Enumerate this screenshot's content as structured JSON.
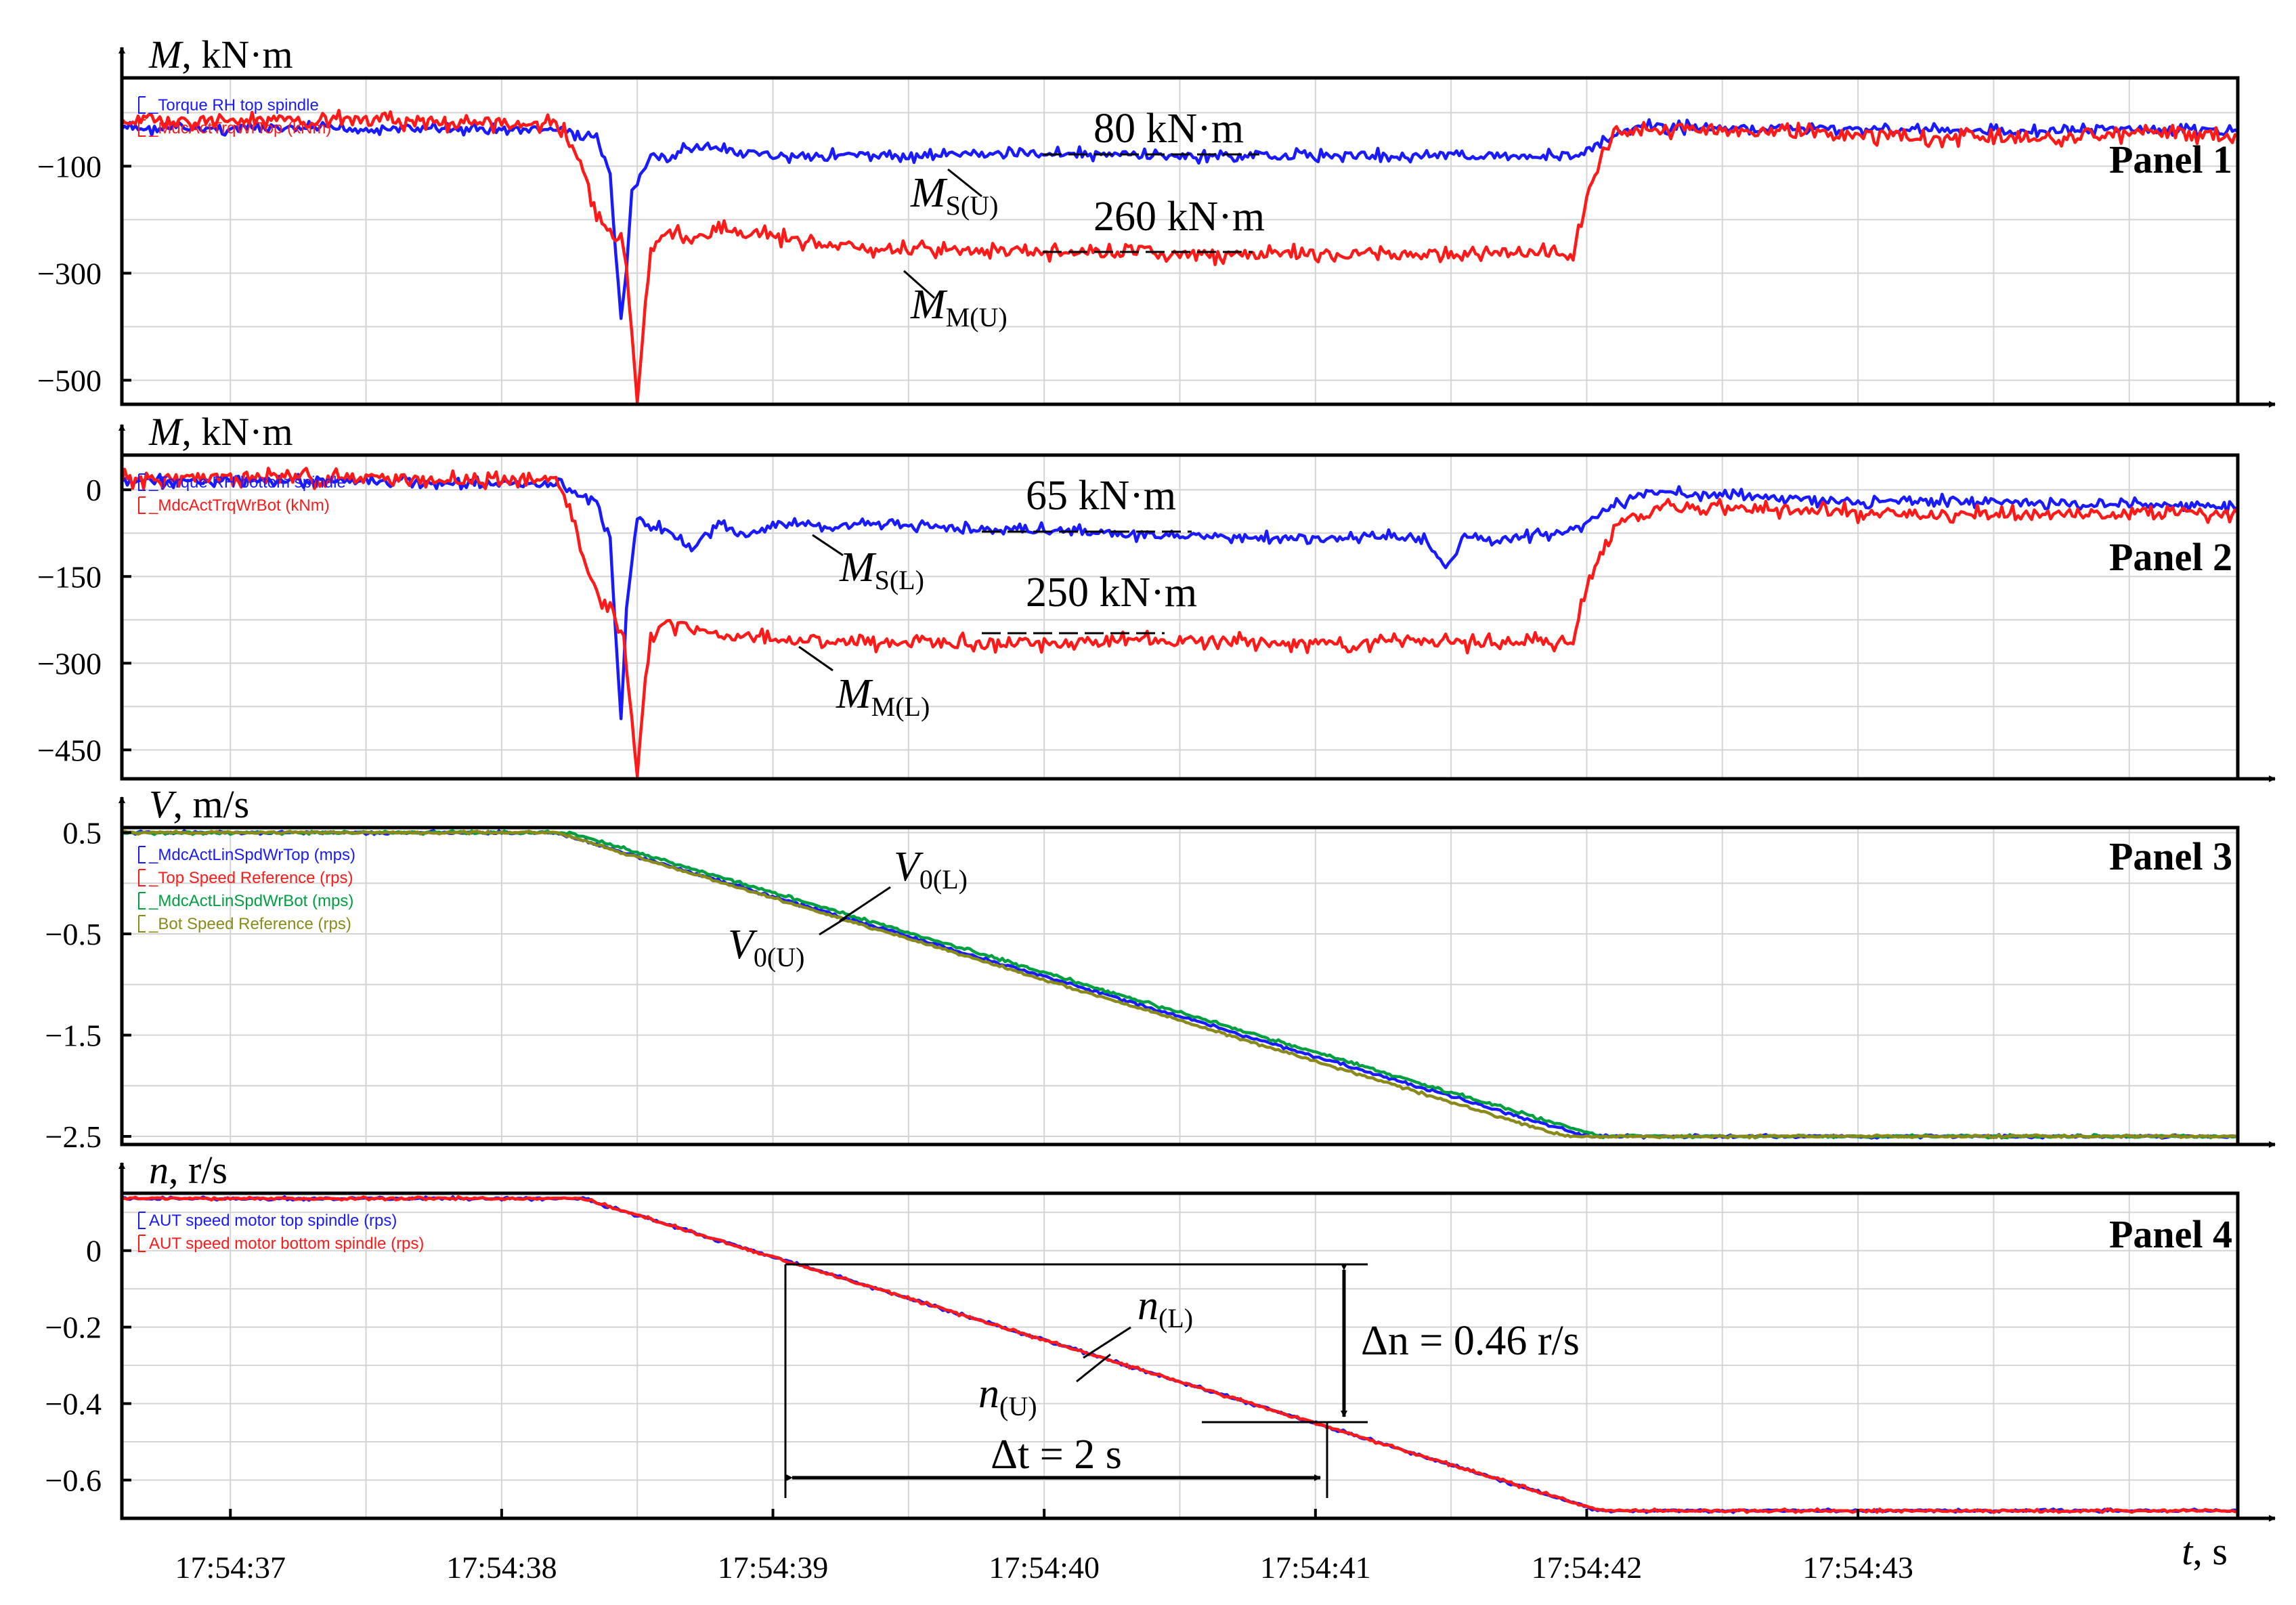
{
  "colors": {
    "blue": "#1a1aff",
    "red": "#ff1a1a",
    "green": "#00a040",
    "olive": "#8a8a1a",
    "grid": "#d4d4d4"
  },
  "x_axis": {
    "label_var": "t",
    "label_unit": ", s",
    "ticks": [
      "17:54:37",
      "17:54:38",
      "17:54:39",
      "17:54:40",
      "17:54:41",
      "17:54:42",
      "17:54:43"
    ],
    "range_s": [
      36.6,
      44.4
    ]
  },
  "chart_data": [
    {
      "type": "line",
      "panel": "Panel 1",
      "ylabel_var": "M",
      "ylabel_unit": ", kN·m",
      "ylim": [
        -545,
        65
      ],
      "yticks": [
        -100,
        -300,
        -500
      ],
      "ytick_labels": [
        "−100",
        "−300",
        "−500"
      ],
      "legend": [
        "_Torque RH top spindle",
        "_MdcActTrqWrTop (kNm)"
      ],
      "series": [
        {
          "name": "_MdcActTrqWrTop (kNm)",
          "label": "MS(U)",
          "color": "blue",
          "x": [
            36.6,
            37.5,
            38.2,
            38.35,
            38.4,
            38.42,
            38.44,
            38.46,
            38.48,
            38.55,
            38.62,
            38.7,
            38.85,
            39.0,
            39.5,
            40.0,
            40.5,
            41.0,
            41.5,
            41.95,
            42.05,
            42.2,
            42.5,
            43.0,
            43.5,
            44.0,
            44.4
          ],
          "y": [
            -30,
            -30,
            -32,
            -45,
            -120,
            -260,
            -390,
            -300,
            -150,
            -80,
            -90,
            -60,
            -75,
            -80,
            -80,
            -75,
            -82,
            -80,
            -80,
            -80,
            -60,
            -25,
            -30,
            -30,
            -35,
            -30,
            -35
          ]
        },
        {
          "name": "_MdcActTrqWrTop (kNm)",
          "label": "MM(U)",
          "color": "red",
          "x": [
            36.6,
            37.5,
            38.2,
            38.25,
            38.3,
            38.35,
            38.4,
            38.45,
            38.5,
            38.52,
            38.55,
            38.6,
            38.7,
            38.8,
            39.0,
            39.2,
            39.5,
            40.0,
            40.5,
            41.0,
            41.5,
            41.95,
            42.0,
            42.1,
            42.3,
            42.5,
            43.0,
            43.5,
            44.0,
            44.4
          ],
          "y": [
            -15,
            -15,
            -20,
            -50,
            -110,
            -190,
            -220,
            -250,
            -530,
            -420,
            -260,
            -220,
            -240,
            -220,
            -230,
            -250,
            -255,
            -260,
            -265,
            -265,
            -265,
            -260,
            -150,
            -40,
            -30,
            -35,
            -40,
            -50,
            -40,
            -45
          ]
        }
      ],
      "annotations": [
        "80 kN·m",
        "260 kN·m"
      ],
      "curve_labels": [
        {
          "base": "M",
          "sub": "S(U)"
        },
        {
          "base": "M",
          "sub": "M(U)"
        }
      ]
    },
    {
      "type": "line",
      "panel": "Panel 2",
      "ylabel_var": "M",
      "ylabel_unit": ", kN·m",
      "ylim": [
        -500,
        60
      ],
      "yticks": [
        0,
        -150,
        -300,
        -450
      ],
      "ytick_labels": [
        "0",
        "−150",
        "−300",
        "−450"
      ],
      "legend": [
        "_Torque RH bottom spindle",
        "_MdcActTrqWrBot (kNm)"
      ],
      "series": [
        {
          "name": "_MdcActTrqWrBot (kNm)",
          "label": "MS(L)",
          "color": "blue",
          "x": [
            36.6,
            37.5,
            38.2,
            38.35,
            38.4,
            38.42,
            38.44,
            38.46,
            38.5,
            38.6,
            38.7,
            38.8,
            38.9,
            39.0,
            39.5,
            40.0,
            40.5,
            41.0,
            41.4,
            41.48,
            41.55,
            41.65,
            41.95,
            42.05,
            42.2,
            42.5,
            43.0,
            43.5,
            44.0,
            44.4
          ],
          "y": [
            15,
            15,
            10,
            -20,
            -90,
            -250,
            -400,
            -200,
            -50,
            -70,
            -100,
            -60,
            -80,
            -60,
            -65,
            -70,
            -80,
            -85,
            -80,
            -140,
            -80,
            -90,
            -70,
            -40,
            -5,
            -10,
            -20,
            -20,
            -25,
            -30
          ]
        },
        {
          "name": "_MdcActTrqWrBot (kNm)",
          "label": "MM(L)",
          "color": "red",
          "x": [
            36.6,
            37.5,
            38.2,
            38.25,
            38.3,
            38.35,
            38.4,
            38.45,
            38.5,
            38.52,
            38.55,
            38.6,
            38.7,
            38.8,
            39.0,
            39.5,
            40.0,
            40.5,
            41.0,
            41.5,
            41.95,
            42.0,
            42.1,
            42.3,
            42.5,
            43.0,
            43.5,
            44.0,
            44.4
          ],
          "y": [
            20,
            20,
            15,
            -30,
            -120,
            -190,
            -210,
            -260,
            -490,
            -380,
            -250,
            -230,
            -240,
            -250,
            -260,
            -265,
            -265,
            -260,
            -265,
            -265,
            -260,
            -170,
            -60,
            -30,
            -30,
            -40,
            -45,
            -40,
            -40
          ]
        }
      ],
      "annotations": [
        "65 kN·m",
        "250 kN·m"
      ],
      "curve_labels": [
        {
          "base": "M",
          "sub": "S(L)"
        },
        {
          "base": "M",
          "sub": "M(L)"
        }
      ]
    },
    {
      "type": "line",
      "panel": "Panel 3",
      "ylabel_var": "V",
      "ylabel_unit": ", m/s",
      "ylim": [
        -2.58,
        0.55
      ],
      "yticks": [
        0.5,
        -0.5,
        -1.5,
        -2.5
      ],
      "ytick_labels": [
        "0.5",
        "−0.5",
        "−1.5",
        "−2.5"
      ],
      "legend": [
        "_MdcActLinSpdWrTop (mps)",
        "_Top Speed Reference (rps)",
        "_MdcActLinSpdWrBot (mps)",
        "_Bot Speed Reference (rps)"
      ],
      "legend_colors": [
        "blue",
        "red",
        "green",
        "olive"
      ],
      "series": [
        {
          "name": "_MdcActLinSpdWrTop (mps)",
          "label": "V0(U)",
          "color": "blue",
          "x": [
            36.6,
            38.2,
            42.0,
            44.4
          ],
          "y": [
            0.5,
            0.5,
            -2.5,
            -2.5
          ]
        },
        {
          "name": "_MdcActLinSpdWrBot (mps)",
          "label": "V0(L)",
          "color": "green",
          "x": [
            36.6,
            38.25,
            42.05,
            44.4
          ],
          "y": [
            0.5,
            0.5,
            -2.5,
            -2.5
          ]
        },
        {
          "name": "_Bot Speed Reference (rps)",
          "color": "olive",
          "x": [
            36.6,
            38.2,
            41.92,
            44.4
          ],
          "y": [
            0.5,
            0.5,
            -2.5,
            -2.5
          ]
        }
      ],
      "curve_labels": [
        {
          "base": "V",
          "sub": "0(L)"
        },
        {
          "base": "V",
          "sub": "0(U)"
        }
      ]
    },
    {
      "type": "line",
      "panel": "Panel 4",
      "ylabel_var": "n",
      "ylabel_unit": ", r/s",
      "ylim": [
        -0.7,
        0.15
      ],
      "yticks": [
        0,
        -0.2,
        -0.4,
        -0.6
      ],
      "ytick_labels": [
        "0",
        "−0.2",
        "−0.4",
        "−0.6"
      ],
      "legend": [
        "AUT speed motor top spindle (rps)",
        "AUT speed motor bottom spindle (rps)"
      ],
      "series": [
        {
          "name": "AUT speed motor top spindle (rps)",
          "label": "n(U)",
          "color": "blue",
          "x": [
            36.6,
            38.3,
            42.05,
            44.4
          ],
          "y": [
            0.136,
            0.136,
            -0.68,
            -0.68
          ]
        },
        {
          "name": "AUT speed motor bottom spindle (rps)",
          "label": "n(L)",
          "color": "red",
          "x": [
            36.6,
            38.3,
            42.05,
            44.4
          ],
          "y": [
            0.136,
            0.136,
            -0.68,
            -0.68
          ]
        }
      ],
      "annotations": [
        "Δn = 0.46 r/s",
        "Δt = 2 s"
      ],
      "curve_labels": [
        {
          "base": "n",
          "sub": "(L)"
        },
        {
          "base": "n",
          "sub": "(U)"
        }
      ]
    }
  ]
}
